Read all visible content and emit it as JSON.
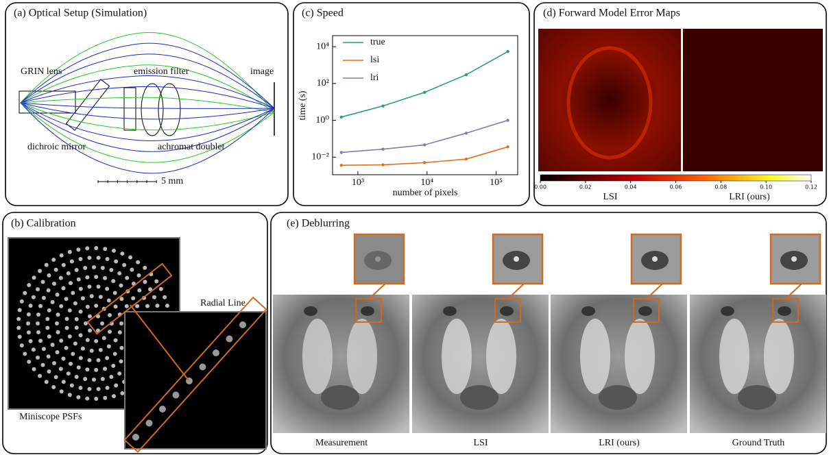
{
  "chart_data": {
    "type": "line",
    "title": "(c) Speed",
    "xlabel": "number of pixels",
    "ylabel": "time (s)",
    "x": [
      576,
      2304,
      9216,
      36864,
      147456
    ],
    "series": [
      {
        "name": "true",
        "color": "#2a9d78",
        "values": [
          1.5,
          6,
          33,
          300,
          5500
        ]
      },
      {
        "name": "lsi",
        "color": "#e0701e",
        "values": [
          0.0036,
          0.0038,
          0.005,
          0.0078,
          0.036
        ]
      },
      {
        "name": "lri",
        "color": "#8a7ab8",
        "values": [
          0.018,
          0.027,
          0.046,
          0.2,
          1.0
        ]
      }
    ],
    "xscale": "log",
    "yscale": "log",
    "xlim": [
      430,
      205000
    ],
    "ylim": [
      0.0011,
      40000
    ],
    "xticks": [
      {
        "value": 1000,
        "label": "10³"
      },
      {
        "value": 10000,
        "label": "10⁴"
      },
      {
        "value": 100000,
        "label": "10⁵"
      }
    ],
    "yticks": [
      {
        "value": 0.01,
        "label": "10⁻²"
      },
      {
        "value": 1,
        "label": "10⁰"
      },
      {
        "value": 100,
        "label": "10²"
      },
      {
        "value": 10000,
        "label": "10⁴"
      }
    ],
    "legend": "upper left"
  },
  "panel_a": {
    "title": "(a) Optical Setup (Simulation)",
    "grin": "GRIN lens",
    "filter": "emission filter",
    "image": "image",
    "mirror": "dichroic mirror",
    "doublet": "achromat doublet",
    "scale": "5 mm"
  },
  "panel_b": {
    "title": "(b) Calibration",
    "radial": "Radial Line",
    "psfs": "Miniscope PSFs"
  },
  "panel_d": {
    "title": "(d) Forward Model Error Maps",
    "left": "LSI",
    "right": "LRI (ours)",
    "colorbar": {
      "lim": [
        0,
        0.12
      ],
      "ticks": [
        {
          "value": 0,
          "label": "0.00"
        },
        {
          "value": 0.02,
          "label": "0.02"
        },
        {
          "value": 0.04,
          "label": "0.04"
        },
        {
          "value": 0.06,
          "label": "0.06"
        },
        {
          "value": 0.08,
          "label": "0.08"
        },
        {
          "value": 0.1,
          "label": "0.10"
        },
        {
          "value": 0.12,
          "label": "0.12"
        }
      ]
    }
  },
  "panel_e": {
    "title": "(e) Deblurring",
    "labels": [
      "Measurement",
      "LSI",
      "LRI (ours)",
      "Ground Truth"
    ]
  }
}
